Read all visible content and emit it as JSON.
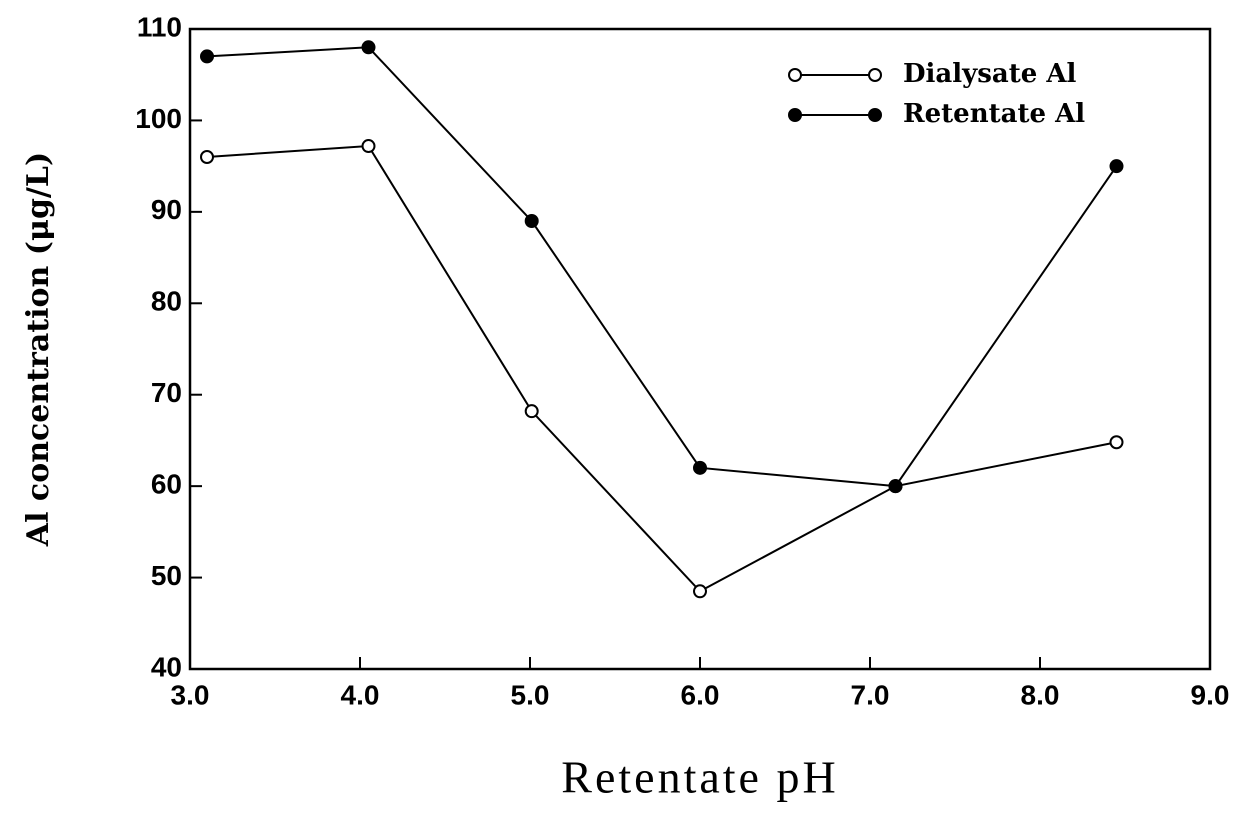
{
  "chart_data": {
    "type": "line",
    "xlabel": "Retentate pH",
    "ylabel": "Al concentration (μg/L)",
    "xlim": [
      3,
      9
    ],
    "xticks": [
      {
        "value": 3,
        "label": "3.0"
      },
      {
        "value": 4,
        "label": "4.0"
      },
      {
        "value": 5,
        "label": "5.0"
      },
      {
        "value": 6,
        "label": "6.0"
      },
      {
        "value": 7,
        "label": "7.0"
      },
      {
        "value": 8,
        "label": "8.0"
      },
      {
        "value": 9,
        "label": "9.0"
      }
    ],
    "ylim": [
      40,
      110
    ],
    "yticks": [
      40,
      50,
      60,
      70,
      80,
      90,
      100,
      110
    ],
    "legend": "upper right",
    "series": [
      {
        "name": "Dialysate Al",
        "color": "#000000",
        "marker": "open",
        "x": [
          3.1,
          4.05,
          5.01,
          6.0,
          7.15,
          8.45
        ],
        "values": [
          96,
          97.2,
          68.2,
          48.5,
          60,
          64.8
        ]
      },
      {
        "name": "Retentate Al",
        "color": "#000000",
        "marker": "filled",
        "x": [
          3.1,
          4.05,
          5.01,
          6.0,
          7.15,
          8.45
        ],
        "values": [
          107,
          108,
          89,
          62,
          60,
          95
        ]
      }
    ]
  }
}
